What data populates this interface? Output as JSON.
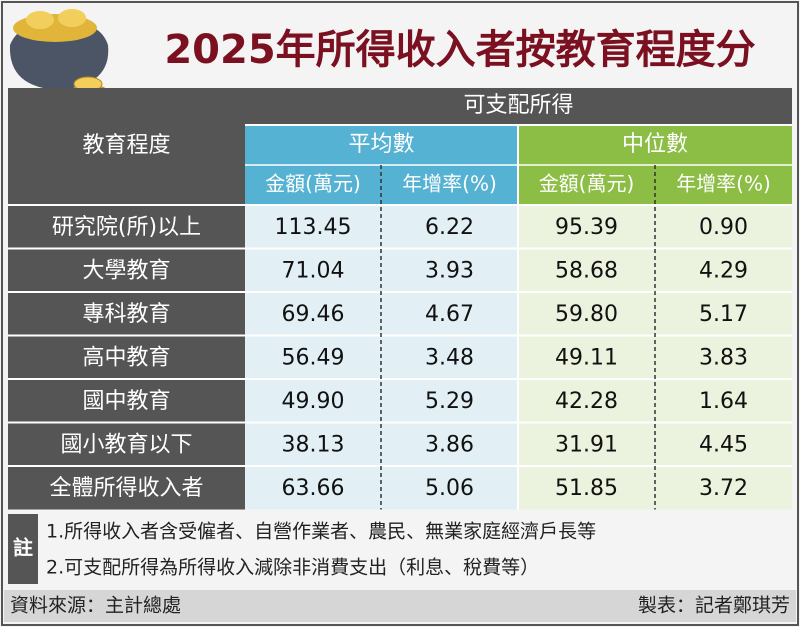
{
  "title": "2025年所得收入者按教育程度分",
  "table": {
    "header": {
      "row_label": "教育程度",
      "group": "可支配所得",
      "sub_groups": [
        "平均數",
        "中位數"
      ],
      "columns": [
        "金額(萬元)",
        "年增率(%)",
        "金額(萬元)",
        "年增率(%)"
      ]
    },
    "rows": [
      [
        "研究院(所)以上",
        "113.45",
        "6.22",
        "95.39",
        "0.90"
      ],
      [
        "大學教育",
        "71.04",
        "3.93",
        "58.68",
        "4.29"
      ],
      [
        "專科教育",
        "69.46",
        "4.67",
        "59.80",
        "5.17"
      ],
      [
        "高中教育",
        "56.49",
        "3.48",
        "49.11",
        "3.83"
      ],
      [
        "國中教育",
        "49.90",
        "5.29",
        "42.28",
        "1.64"
      ],
      [
        "國小教育以下",
        "38.13",
        "3.86",
        "31.91",
        "4.45"
      ],
      [
        "全體所得收入者",
        "63.66",
        "5.06",
        "51.85",
        "3.72"
      ]
    ]
  },
  "notes": {
    "label": "註",
    "items": [
      "1.所得收入者含受僱者、自營作業者、農民、無業家庭經濟戶長等",
      "2.可支配所得為所得收入減除非消費支出（利息、稅費等）"
    ]
  },
  "footer": {
    "source": "資料來源：主計總處",
    "credit": "製表：記者鄭琪芳"
  }
}
